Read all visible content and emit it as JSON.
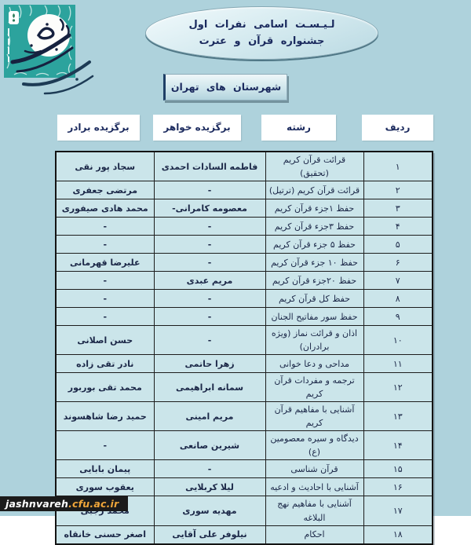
{
  "page": {
    "background": "#aed2dc"
  },
  "logo": {
    "label": "جشنواره های فرهنگی",
    "teal": "#2ca39d",
    "ink": "#16213f"
  },
  "header": {
    "title_line1": "لـیـسـت اسامی نفرات اول",
    "title_line2": "جشنواره قرآن و عترت",
    "subtitle": "شهرستان های تهران"
  },
  "table": {
    "columns": [
      {
        "key": "radif",
        "label": "ردیف"
      },
      {
        "key": "reshteh",
        "label": "رشته"
      },
      {
        "key": "khahar",
        "label": "برگزیده خواهر"
      },
      {
        "key": "baradar",
        "label": "برگزیده برادر"
      }
    ],
    "column_keys": [
      "radif",
      "reshteh",
      "khahar",
      "baradar"
    ],
    "rows": [
      {
        "radif": "۱",
        "reshteh": "قرائت قرآن کریم (تحقیق)",
        "khahar": "فاطمه السادات احمدی",
        "baradar": "سجاد پور نقی"
      },
      {
        "radif": "۲",
        "reshteh": "قرائت قرآن کریم (ترتیل)",
        "khahar": "-",
        "baradar": "مرتضی جعفری"
      },
      {
        "radif": "۳",
        "reshteh": "حفظ ۱جزء قرآن کریم",
        "khahar": "معصومه کامرانی-",
        "baradar": "محمد هادی صیفوری"
      },
      {
        "radif": "۴",
        "reshteh": "حفظ ۳جزء قرآن کریم",
        "khahar": "-",
        "baradar": "-"
      },
      {
        "radif": "۵",
        "reshteh": "حفظ ۵ جزء قرآن کریم",
        "khahar": "-",
        "baradar": "-"
      },
      {
        "radif": "۶",
        "reshteh": "حفظ ۱۰ جزء قرآن کریم",
        "khahar": "-",
        "baradar": "علیرضا قهرمانی"
      },
      {
        "radif": "۷",
        "reshteh": "حفظ ۲۰جزء قرآن کریم",
        "khahar": "مریم عبدی",
        "baradar": "-"
      },
      {
        "radif": "۸",
        "reshteh": "حفظ کل قرآن کریم",
        "khahar": "-",
        "baradar": "-"
      },
      {
        "radif": "۹",
        "reshteh": "حفظ سور مفاتیح الجنان",
        "khahar": "-",
        "baradar": "-"
      },
      {
        "radif": "۱۰",
        "reshteh": "اذان و قرائت نماز (ویژه برادران)",
        "khahar": "-",
        "baradar": "حسن اصلانی"
      },
      {
        "radif": "۱۱",
        "reshteh": "مداحی و دعا خوانی",
        "khahar": "زهرا حاتمی",
        "baradar": "نادر تقی زاده"
      },
      {
        "radif": "۱۲",
        "reshteh": "ترجمه و مفردات قرآن کریم",
        "khahar": "سمانه ابراهیمی",
        "baradar": "محمد تقی بوربور"
      },
      {
        "radif": "۱۳",
        "reshteh": "آشنایی با مفاهیم قرآن کریم",
        "khahar": "مریم امینی",
        "baradar": "حمید رضا شاهسوند"
      },
      {
        "radif": "۱۴",
        "reshteh": "دیدگاه و سیره معصومین (ع)",
        "khahar": "شیرین صانعی",
        "baradar": "-"
      },
      {
        "radif": "۱۵",
        "reshteh": "قرآن شناسی",
        "khahar": "-",
        "baradar": "پیمان بابایی"
      },
      {
        "radif": "۱۶",
        "reshteh": "آشنایی با احادیث و ادعیه",
        "khahar": "لیلا کربلایی",
        "baradar": "یعقوب سوری"
      },
      {
        "radif": "۱۷",
        "reshteh": "آشنایی با مفاهیم نهج البلاغه",
        "khahar": "مهدیه سوری",
        "baradar": "محمد رجبی"
      },
      {
        "radif": "۱۸",
        "reshteh": "احکام",
        "khahar": "نیلوفر علی آقایی",
        "baradar": "اصغر حسنی خانقاه"
      }
    ]
  },
  "footer": {
    "site_prefix": "jashnvareh",
    "site_suffix": ".cfu.ac.ir"
  }
}
